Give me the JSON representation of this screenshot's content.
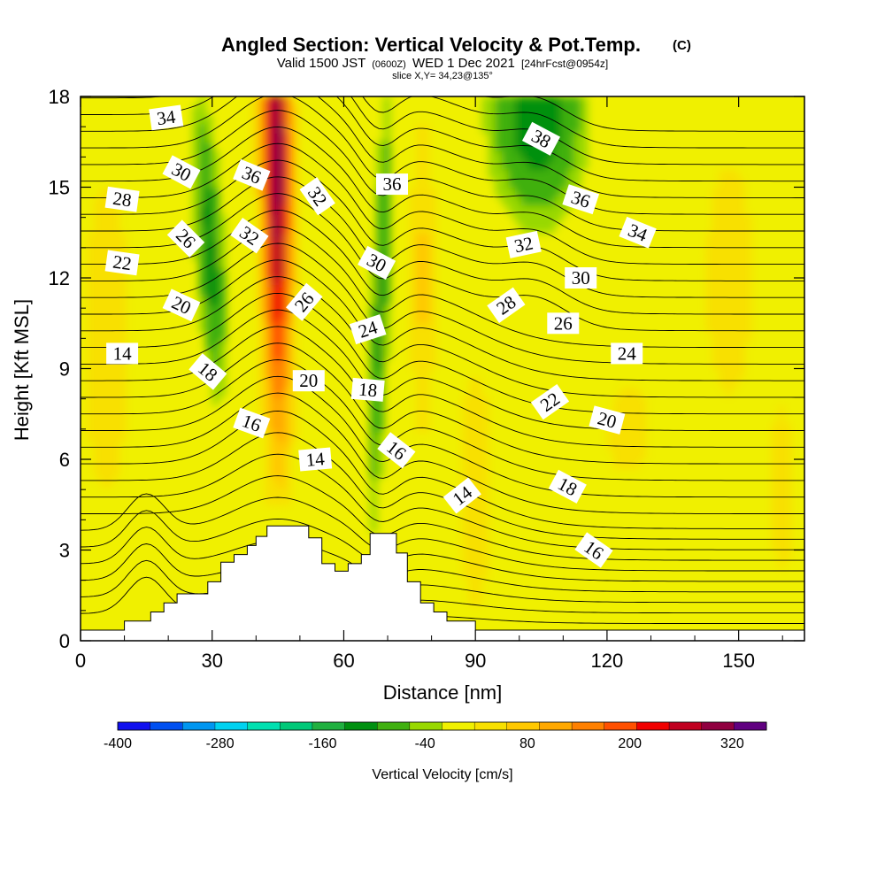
{
  "header": {
    "title": "Angled Section: Vertical Velocity & Pot.Temp.",
    "title_mark": "(C)",
    "valid_a": "Valid 1500 JST",
    "valid_utc": "(0600Z)",
    "valid_b": "WED 1 Dec 2021",
    "forecast": "[24hrFcst@0954z]",
    "slice": "slice X,Y= 34,23@135°"
  },
  "chart_data": {
    "type": "heatmap",
    "xlabel": "Distance [nm]",
    "ylabel": "Height [Kft MSL]",
    "xlim": [
      0,
      165
    ],
    "ylim": [
      0,
      18
    ],
    "x_ticks": [
      "0",
      "30",
      "60",
      "90",
      "120",
      "150"
    ],
    "y_ticks": [
      "0",
      "3",
      "6",
      "9",
      "12",
      "15",
      "18"
    ],
    "colorbar": {
      "label": "Vertical Velocity [cm/s]",
      "min": -400,
      "max": 360,
      "step": 40,
      "tick_labels": [
        "-400",
        "-280",
        "-160",
        "-40",
        "80",
        "200",
        "320"
      ],
      "colors": [
        "#1010ee",
        "#0050f0",
        "#0096f0",
        "#00d2f0",
        "#00e0b0",
        "#00c878",
        "#20b040",
        "#009010",
        "#40b010",
        "#98d800",
        "#f0f000",
        "#f8e000",
        "#ffc800",
        "#ffa800",
        "#ff8000",
        "#ff5000",
        "#f00000",
        "#c00020",
        "#900040",
        "#600080"
      ]
    },
    "terrain_kft": [
      [
        0,
        0.35
      ],
      [
        10,
        0.35
      ],
      [
        10,
        0.65
      ],
      [
        16,
        0.65
      ],
      [
        16,
        0.95
      ],
      [
        19,
        0.95
      ],
      [
        19,
        1.25
      ],
      [
        22,
        1.25
      ],
      [
        22,
        1.55
      ],
      [
        29,
        1.55
      ],
      [
        29,
        1.95
      ],
      [
        32,
        1.95
      ],
      [
        32,
        2.6
      ],
      [
        35,
        2.6
      ],
      [
        35,
        2.85
      ],
      [
        38,
        2.85
      ],
      [
        38,
        3.15
      ],
      [
        40,
        3.15
      ],
      [
        40,
        3.45
      ],
      [
        42.5,
        3.45
      ],
      [
        42.5,
        3.8
      ],
      [
        52,
        3.8
      ],
      [
        52,
        3.4
      ],
      [
        55,
        3.4
      ],
      [
        55,
        2.55
      ],
      [
        58,
        2.55
      ],
      [
        58,
        2.3
      ],
      [
        61,
        2.3
      ],
      [
        61,
        2.55
      ],
      [
        64,
        2.55
      ],
      [
        64,
        2.85
      ],
      [
        66,
        2.85
      ],
      [
        66,
        3.55
      ],
      [
        72,
        3.55
      ],
      [
        72,
        2.9
      ],
      [
        74.5,
        2.9
      ],
      [
        74.5,
        1.95
      ],
      [
        77.5,
        1.95
      ],
      [
        77.5,
        1.25
      ],
      [
        80.5,
        1.25
      ],
      [
        80.5,
        0.95
      ],
      [
        83.5,
        0.95
      ],
      [
        83.5,
        0.65
      ],
      [
        90,
        0.65
      ],
      [
        90,
        0.35
      ],
      [
        165,
        0.35
      ]
    ],
    "updraft_max_cm_s": 360,
    "downdraft_min_cm_s": -120,
    "theta_contour_labels": [
      {
        "text": "34",
        "x": 19.5,
        "y": 17.3,
        "angle": -8
      },
      {
        "text": "30",
        "x": 23,
        "y": 15.5,
        "angle": 28
      },
      {
        "text": "28",
        "x": 9.5,
        "y": 14.6,
        "angle": 8
      },
      {
        "text": "26",
        "x": 24,
        "y": 13.3,
        "angle": 45
      },
      {
        "text": "22",
        "x": 9.5,
        "y": 12.5,
        "angle": 8
      },
      {
        "text": "20",
        "x": 23,
        "y": 11.1,
        "angle": 25
      },
      {
        "text": "14",
        "x": 9.5,
        "y": 9.5,
        "angle": 0
      },
      {
        "text": "18",
        "x": 29,
        "y": 8.9,
        "angle": 40
      },
      {
        "text": "16",
        "x": 39,
        "y": 7.2,
        "angle": 20
      },
      {
        "text": "36",
        "x": 39,
        "y": 15.4,
        "angle": 22
      },
      {
        "text": "32",
        "x": 38.5,
        "y": 13.4,
        "angle": 35
      },
      {
        "text": "32",
        "x": 54,
        "y": 14.7,
        "angle": 55
      },
      {
        "text": "26",
        "x": 51,
        "y": 11.2,
        "angle": -50
      },
      {
        "text": "20",
        "x": 52,
        "y": 8.6,
        "angle": 0
      },
      {
        "text": "14",
        "x": 53.5,
        "y": 6.0,
        "angle": -5
      },
      {
        "text": "36",
        "x": 71,
        "y": 15.1,
        "angle": 0
      },
      {
        "text": "30",
        "x": 67.5,
        "y": 12.5,
        "angle": 28
      },
      {
        "text": "24",
        "x": 65.5,
        "y": 10.3,
        "angle": -18
      },
      {
        "text": "18",
        "x": 65.5,
        "y": 8.3,
        "angle": 5
      },
      {
        "text": "16",
        "x": 72,
        "y": 6.3,
        "angle": 38
      },
      {
        "text": "14",
        "x": 87,
        "y": 4.8,
        "angle": -38
      },
      {
        "text": "38",
        "x": 105,
        "y": 16.6,
        "angle": 28
      },
      {
        "text": "36",
        "x": 114,
        "y": 14.6,
        "angle": 18
      },
      {
        "text": "34",
        "x": 127,
        "y": 13.5,
        "angle": 22
      },
      {
        "text": "32",
        "x": 101,
        "y": 13.1,
        "angle": -12
      },
      {
        "text": "30",
        "x": 114,
        "y": 12.0,
        "angle": 0
      },
      {
        "text": "28",
        "x": 97,
        "y": 11.1,
        "angle": -35
      },
      {
        "text": "26",
        "x": 110,
        "y": 10.5,
        "angle": 0
      },
      {
        "text": "24",
        "x": 124.5,
        "y": 9.5,
        "angle": 0
      },
      {
        "text": "22",
        "x": 107,
        "y": 7.9,
        "angle": -35
      },
      {
        "text": "20",
        "x": 120,
        "y": 7.3,
        "angle": 15
      },
      {
        "text": "18",
        "x": 111,
        "y": 5.1,
        "angle": 28
      },
      {
        "text": "16",
        "x": 117,
        "y": 3.0,
        "angle": 35
      }
    ]
  }
}
